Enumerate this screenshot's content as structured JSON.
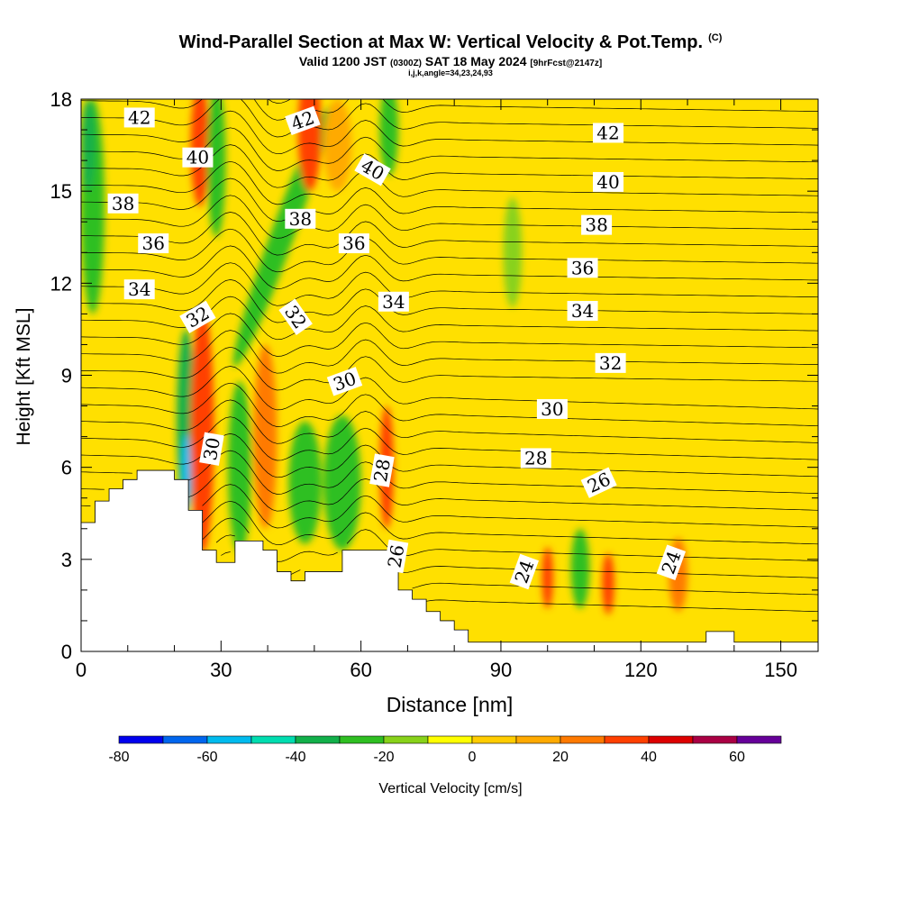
{
  "header": {
    "title": "Wind-Parallel Section at Max W: Vertical Velocity & Pot.Temp.",
    "copyright": "(C)",
    "valid_main": "Valid 1200 JST",
    "valid_utc": "(0300Z)",
    "valid_date": "SAT 18 May 2024",
    "forecast": "[9hrFcst@2147z]",
    "params": "i,j,k,angle=34,23,24,93"
  },
  "chart_data": {
    "type": "heatmap",
    "xlabel": "Distance [nm]",
    "ylabel": "Height [Kft MSL]",
    "xlim": [
      0,
      158
    ],
    "ylim": [
      0,
      18
    ],
    "x_ticks": [
      0,
      30,
      60,
      90,
      120,
      150
    ],
    "y_ticks": [
      0,
      3,
      6,
      9,
      12,
      15,
      18
    ],
    "colorbar": {
      "label": "Vertical Velocity [cm/s]",
      "min": -80,
      "max": 70,
      "step": 10,
      "tick_values": [
        -80,
        -60,
        -40,
        -20,
        0,
        20,
        40,
        60
      ],
      "colors": [
        "#0000ee",
        "#0066ee",
        "#00bbee",
        "#00ddb0",
        "#12b04a",
        "#2fbf22",
        "#88d21a",
        "#ffff00",
        "#ffcc00",
        "#ffaa00",
        "#ff7a00",
        "#ff4000",
        "#dd0000",
        "#aa0044",
        "#660099"
      ]
    },
    "background_color": "#ffe000",
    "terrain": [
      [
        0,
        4.2
      ],
      [
        3,
        4.2
      ],
      [
        3,
        4.9
      ],
      [
        6,
        4.9
      ],
      [
        6,
        5.3
      ],
      [
        9,
        5.3
      ],
      [
        9,
        5.6
      ],
      [
        12,
        5.6
      ],
      [
        12,
        5.9
      ],
      [
        20,
        5.9
      ],
      [
        20,
        5.6
      ],
      [
        23,
        5.6
      ],
      [
        23,
        4.6
      ],
      [
        26,
        4.6
      ],
      [
        26,
        3.3
      ],
      [
        29,
        3.3
      ],
      [
        29,
        2.9
      ],
      [
        33,
        2.9
      ],
      [
        33,
        3.6
      ],
      [
        39,
        3.6
      ],
      [
        39,
        3.3
      ],
      [
        42,
        3.3
      ],
      [
        42,
        2.6
      ],
      [
        45,
        2.6
      ],
      [
        45,
        2.3
      ],
      [
        48,
        2.3
      ],
      [
        48,
        2.6
      ],
      [
        56,
        2.6
      ],
      [
        56,
        3.3
      ],
      [
        66,
        3.3
      ],
      [
        66,
        2.9
      ],
      [
        68,
        2.9
      ],
      [
        68,
        2.0
      ],
      [
        71,
        2.0
      ],
      [
        71,
        1.7
      ],
      [
        74,
        1.7
      ],
      [
        74,
        1.3
      ],
      [
        77,
        1.3
      ],
      [
        77,
        1.0
      ],
      [
        80,
        1.0
      ],
      [
        80,
        0.7
      ],
      [
        83,
        0.7
      ],
      [
        83,
        0.3
      ],
      [
        134,
        0.3
      ],
      [
        134,
        0.65
      ],
      [
        140,
        0.65
      ],
      [
        140,
        0.3
      ],
      [
        158,
        0.3
      ]
    ],
    "velocity_features": [
      {
        "x": 2.5,
        "y": 14.5,
        "w": 2.5,
        "h": 3.5,
        "value": -25,
        "angle": 0
      },
      {
        "x": 1.5,
        "y": 16.5,
        "w": 1.5,
        "h": 1.5,
        "value": -40,
        "angle": 0
      },
      {
        "x": 22.5,
        "y": 7.5,
        "w": 2.0,
        "h": 3.0,
        "value": -35,
        "angle": 0
      },
      {
        "x": 22.5,
        "y": 5.8,
        "w": 1.0,
        "h": 1.3,
        "value": -55,
        "angle": 0
      },
      {
        "x": 26.0,
        "y": 7.2,
        "w": 2.5,
        "h": 4.0,
        "value": 30,
        "angle": 0
      },
      {
        "x": 25.5,
        "y": 16.5,
        "w": 2.0,
        "h": 2.0,
        "value": 30,
        "angle": 0
      },
      {
        "x": 29.0,
        "y": 16.0,
        "w": 2.0,
        "h": 2.5,
        "value": -25,
        "angle": 0
      },
      {
        "x": 34.0,
        "y": 6.0,
        "w": 2.5,
        "h": 2.8,
        "value": -25,
        "angle": 0
      },
      {
        "x": 39.5,
        "y": 7.0,
        "w": 2.5,
        "h": 3.0,
        "value": 25,
        "angle": 0
      },
      {
        "x": 43.0,
        "y": 13.5,
        "w": 2.5,
        "h": 4.5,
        "value": -25,
        "angle": 20
      },
      {
        "x": 49.0,
        "y": 17.0,
        "w": 2.5,
        "h": 2.0,
        "value": 30,
        "angle": 0
      },
      {
        "x": 48.0,
        "y": 5.5,
        "w": 3.5,
        "h": 2.0,
        "value": -25,
        "angle": 0
      },
      {
        "x": 56.0,
        "y": 5.5,
        "w": 4.0,
        "h": 2.2,
        "value": -25,
        "angle": 0
      },
      {
        "x": 55.0,
        "y": 16.5,
        "w": 3.0,
        "h": 1.5,
        "value": 15,
        "angle": 0
      },
      {
        "x": 65.5,
        "y": 6.0,
        "w": 1.5,
        "h": 2.0,
        "value": 30,
        "angle": 0
      },
      {
        "x": 66.0,
        "y": 17.0,
        "w": 2.0,
        "h": 1.5,
        "value": -25,
        "angle": 0
      },
      {
        "x": 92.5,
        "y": 13.0,
        "w": 2.0,
        "h": 1.8,
        "value": -15,
        "angle": 0
      },
      {
        "x": 100.0,
        "y": 2.4,
        "w": 1.2,
        "h": 1.0,
        "value": 35,
        "angle": 0
      },
      {
        "x": 107.0,
        "y": 2.7,
        "w": 2.0,
        "h": 1.3,
        "value": -30,
        "angle": 0
      },
      {
        "x": 113.0,
        "y": 2.2,
        "w": 1.3,
        "h": 1.0,
        "value": 30,
        "angle": 0
      },
      {
        "x": 128.0,
        "y": 2.5,
        "w": 2.0,
        "h": 1.2,
        "value": 25,
        "angle": 0
      }
    ],
    "contour_labels": [
      {
        "x": 12.5,
        "y": 17.4,
        "text": "42",
        "angle": 0
      },
      {
        "x": 25.0,
        "y": 16.1,
        "text": "40",
        "angle": 0
      },
      {
        "x": 9.0,
        "y": 14.6,
        "text": "38",
        "angle": 0
      },
      {
        "x": 15.5,
        "y": 13.3,
        "text": "36",
        "angle": 0
      },
      {
        "x": 12.5,
        "y": 11.8,
        "text": "34",
        "angle": 0
      },
      {
        "x": 25.0,
        "y": 10.9,
        "text": "32",
        "angle": -30
      },
      {
        "x": 28.0,
        "y": 6.6,
        "text": "30",
        "angle": -80
      },
      {
        "x": 46.0,
        "y": 10.9,
        "text": "32",
        "angle": 55
      },
      {
        "x": 47.5,
        "y": 17.3,
        "text": "42",
        "angle": -20
      },
      {
        "x": 47.0,
        "y": 14.1,
        "text": "38",
        "angle": 0
      },
      {
        "x": 58.5,
        "y": 13.3,
        "text": "36",
        "angle": 0
      },
      {
        "x": 62.5,
        "y": 15.7,
        "text": "40",
        "angle": 30
      },
      {
        "x": 56.5,
        "y": 8.8,
        "text": "30",
        "angle": -20
      },
      {
        "x": 67.0,
        "y": 11.4,
        "text": "34",
        "angle": 0
      },
      {
        "x": 64.5,
        "y": 5.9,
        "text": "28",
        "angle": -80
      },
      {
        "x": 67.5,
        "y": 3.1,
        "text": "26",
        "angle": -80
      },
      {
        "x": 95.0,
        "y": 2.6,
        "text": "24",
        "angle": -70
      },
      {
        "x": 126.5,
        "y": 2.9,
        "text": "24",
        "angle": -70
      },
      {
        "x": 101.0,
        "y": 7.9,
        "text": "30",
        "angle": 0
      },
      {
        "x": 97.5,
        "y": 6.3,
        "text": "28",
        "angle": 0
      },
      {
        "x": 111.0,
        "y": 5.5,
        "text": "26",
        "angle": -25
      },
      {
        "x": 113.5,
        "y": 9.4,
        "text": "32",
        "angle": 0
      },
      {
        "x": 107.5,
        "y": 11.1,
        "text": "34",
        "angle": 0
      },
      {
        "x": 107.5,
        "y": 12.5,
        "text": "36",
        "angle": 0
      },
      {
        "x": 110.5,
        "y": 13.9,
        "text": "38",
        "angle": 0
      },
      {
        "x": 113.0,
        "y": 15.3,
        "text": "40",
        "angle": 0
      },
      {
        "x": 113.0,
        "y": 16.9,
        "text": "42",
        "angle": 0
      }
    ]
  }
}
